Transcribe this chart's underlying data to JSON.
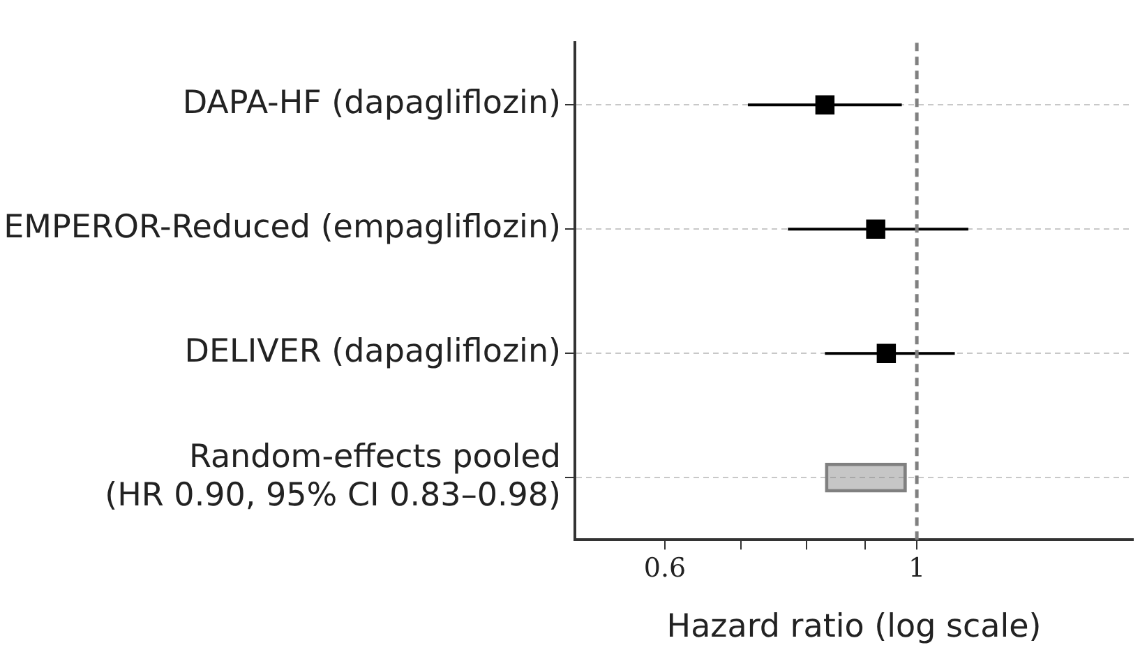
{
  "chart_data": {
    "type": "scatter",
    "orientation": "horizontal",
    "log": "x",
    "grid": "y",
    "marker": "square",
    "xlabel": "Hazard ratio (log scale)",
    "categories": [
      "DAPA-HF (dapagliflozin)",
      "EMPEROR-Reduced (empagliflozin)",
      "DELIVER (dapagliflozin)",
      "Random-effects pooled\n(HR 0.90, 95% CI 0.83–0.98)"
    ],
    "xlim": [
      0.5,
      1.55
    ],
    "xticks": [
      0.6,
      {
        "value": 0.7,
        "label": null
      },
      {
        "value": 0.8,
        "label": null
      },
      {
        "value": 0.9,
        "label": null
      },
      1
    ],
    "series": [
      {
        "color": "#000000",
        "values": [
          0.83,
          0.92,
          0.94,
          null
        ],
        "errors": [
          [
            0.71,
            0.97
          ],
          [
            0.77,
            1.11
          ],
          [
            0.83,
            1.08
          ],
          null
        ]
      },
      {
        "type": "bar",
        "color": "#808080",
        "values": [
          null,
          null,
          null,
          0.15
        ],
        "base": [
          null,
          null,
          null,
          0.83
        ]
      }
    ],
    "ref_lines": [
      {
        "axis": "x",
        "value": 1,
        "color": "#808080",
        "line_style": "dashed"
      }
    ]
  }
}
